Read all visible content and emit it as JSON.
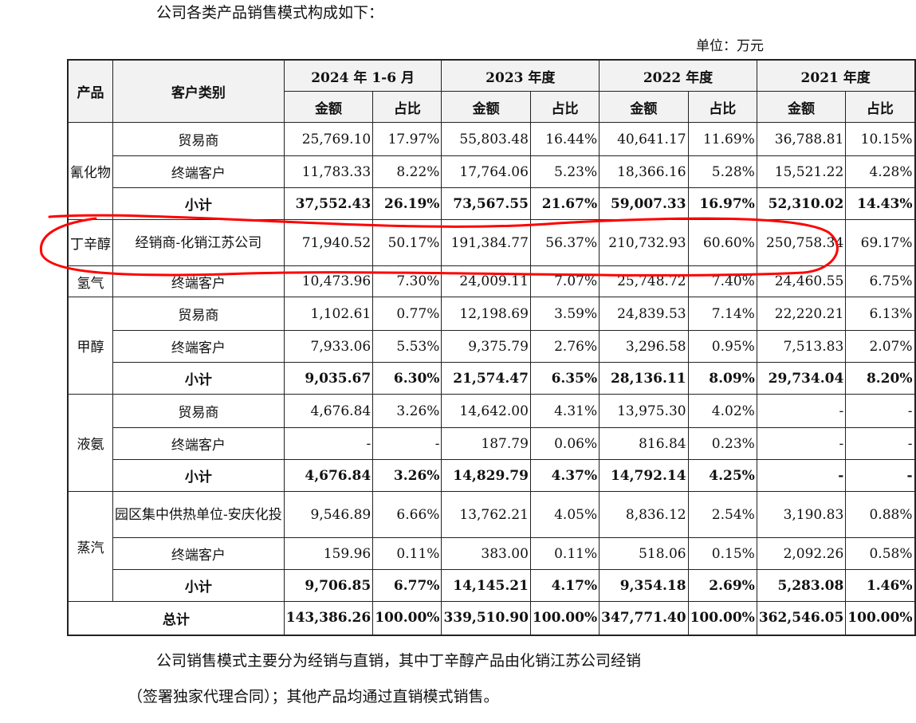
{
  "intro": "公司各类产品销售模式构成如下：",
  "unit": "单位：万元",
  "header": {
    "product": "产品",
    "customer": "客户类别",
    "periods": [
      "2024 年 1-6 月",
      "2023 年度",
      "2022 年度",
      "2021 年度"
    ],
    "amount": "金额",
    "ratio": "占比"
  },
  "groups": {
    "cyanide": {
      "name": "氰化物",
      "rows": [
        {
          "type": "贸易商",
          "cells": [
            "25,769.10",
            "17.97%",
            "55,803.48",
            "16.44%",
            "40,641.17",
            "11.69%",
            "36,788.81",
            "10.15%"
          ]
        },
        {
          "type": "终端客户",
          "cells": [
            "11,783.33",
            "8.22%",
            "17,764.06",
            "5.23%",
            "18,366.16",
            "5.28%",
            "15,521.22",
            "4.28%"
          ]
        },
        {
          "type": "小计",
          "cells": [
            "37,552.43",
            "26.19%",
            "73,567.55",
            "21.67%",
            "59,007.33",
            "16.97%",
            "52,310.02",
            "14.43%"
          ]
        }
      ]
    },
    "butynediol": {
      "name": "丁辛醇",
      "rows": [
        {
          "type": "经销商-化销江苏公司",
          "cells": [
            "71,940.52",
            "50.17%",
            "191,384.77",
            "56.37%",
            "210,732.93",
            "60.60%",
            "250,758.34",
            "69.17%"
          ]
        }
      ]
    },
    "hydrogen": {
      "name": "氢气",
      "rows": [
        {
          "type": "终端客户",
          "cells": [
            "10,473.96",
            "7.30%",
            "24,009.11",
            "7.07%",
            "25,748.72",
            "7.40%",
            "24,460.55",
            "6.75%"
          ]
        }
      ]
    },
    "methanol": {
      "name": "甲醇",
      "rows": [
        {
          "type": "贸易商",
          "cells": [
            "1,102.61",
            "0.77%",
            "12,198.69",
            "3.59%",
            "24,839.53",
            "7.14%",
            "22,220.21",
            "6.13%"
          ]
        },
        {
          "type": "终端客户",
          "cells": [
            "7,933.06",
            "5.53%",
            "9,375.79",
            "2.76%",
            "3,296.58",
            "0.95%",
            "7,513.83",
            "2.07%"
          ]
        },
        {
          "type": "小计",
          "cells": [
            "9,035.67",
            "6.30%",
            "21,574.47",
            "6.35%",
            "28,136.11",
            "8.09%",
            "29,734.04",
            "8.20%"
          ]
        }
      ]
    },
    "ammonia": {
      "name": "液氨",
      "rows": [
        {
          "type": "贸易商",
          "cells": [
            "4,676.84",
            "3.26%",
            "14,642.00",
            "4.31%",
            "13,975.30",
            "4.02%",
            "-",
            "-"
          ]
        },
        {
          "type": "终端客户",
          "cells": [
            "-",
            "-",
            "187.79",
            "0.06%",
            "816.84",
            "0.23%",
            "-",
            "-"
          ]
        },
        {
          "type": "小计",
          "cells": [
            "4,676.84",
            "3.26%",
            "14,829.79",
            "4.37%",
            "14,792.14",
            "4.25%",
            "-",
            "-"
          ]
        }
      ]
    },
    "steam": {
      "name": "蒸汽",
      "rows": [
        {
          "type": "园区集中供热单位-安庆化投",
          "cells": [
            "9,546.89",
            "6.66%",
            "13,762.21",
            "4.05%",
            "8,836.12",
            "2.54%",
            "3,190.83",
            "0.88%"
          ]
        },
        {
          "type": "终端客户",
          "cells": [
            "159.96",
            "0.11%",
            "383.00",
            "0.11%",
            "518.06",
            "0.15%",
            "2,092.26",
            "0.58%"
          ]
        },
        {
          "type": "小计",
          "cells": [
            "9,706.85",
            "6.77%",
            "14,145.21",
            "4.17%",
            "9,354.18",
            "2.69%",
            "5,283.08",
            "1.46%"
          ]
        }
      ]
    }
  },
  "total": {
    "label": "总计",
    "cells": [
      "143,386.26",
      "100.00%",
      "339,510.90",
      "100.00%",
      "347,771.40",
      "100.00%",
      "362,546.05",
      "100.00%"
    ]
  },
  "paragraph_1": "公司销售模式主要分为经销与直销，其中丁辛醇产品由化销江苏公司经销",
  "paragraph_2": "（签署独家代理合同）；其他产品均通过直销模式销售。",
  "annotation_color": "#ff0000"
}
